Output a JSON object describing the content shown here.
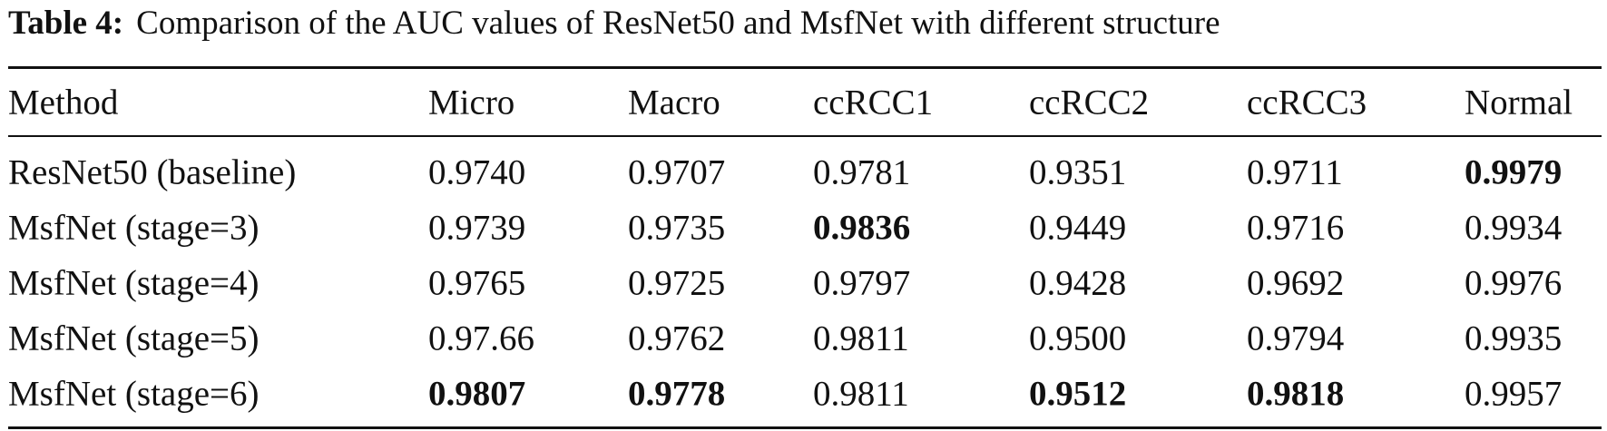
{
  "caption": {
    "label": "Table 4:",
    "text": "Comparison of the AUC values of ResNet50 and MsfNet with different structure"
  },
  "table": {
    "header": [
      "Method",
      "Micro",
      "Macro",
      "ccRCC1",
      "ccRCC2",
      "ccRCC3",
      "Normal"
    ],
    "rows": [
      [
        "ResNet50 (baseline)",
        "0.9740",
        "0.9707",
        "0.9781",
        "0.9351",
        "0.9711",
        "0.9979"
      ],
      [
        "MsfNet (stage=3)",
        "0.9739",
        "0.9735",
        "0.9836",
        "0.9449",
        "0.9716",
        "0.9934"
      ],
      [
        "MsfNet (stage=4)",
        "0.9765",
        "0.9725",
        "0.9797",
        "0.9428",
        "0.9692",
        "0.9976"
      ],
      [
        "MsfNet (stage=5)",
        "0.97.66",
        "0.9762",
        "0.9811",
        "0.9500",
        "0.9794",
        "0.9935"
      ],
      [
        "MsfNet (stage=6)",
        "0.9807",
        "0.9778",
        "0.9811",
        "0.9512",
        "0.9818",
        "0.9957"
      ]
    ],
    "bold_cells": [
      [
        0,
        6
      ],
      [
        1,
        3
      ],
      [
        4,
        1
      ],
      [
        4,
        2
      ],
      [
        4,
        4
      ],
      [
        4,
        5
      ]
    ]
  }
}
